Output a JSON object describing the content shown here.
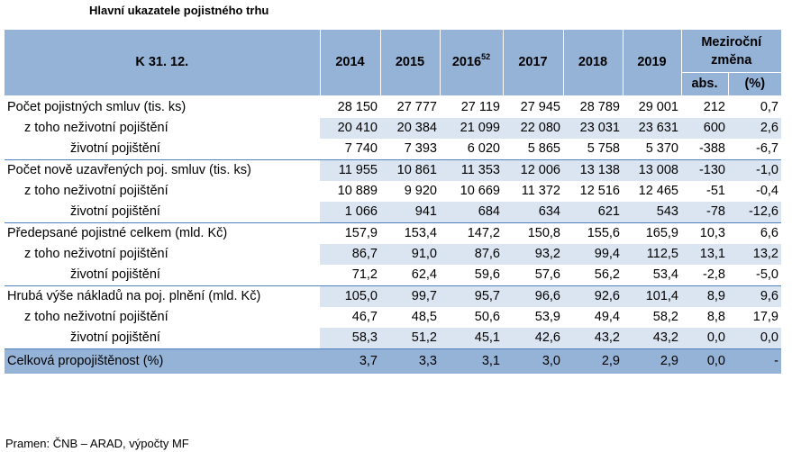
{
  "title": "Hlavní ukazatele pojistného trhu",
  "header": {
    "first_col": "K 31. 12.",
    "years": [
      "2014",
      "2015",
      "2016",
      "2017",
      "2018",
      "2019"
    ],
    "footnote_2016": "52",
    "change_label": "Meziroční změna",
    "abs_label": "abs.",
    "pct_label": "(%)"
  },
  "rows": [
    {
      "label": "Počet pojistných smluv (tis. ks)",
      "values": [
        "28 150",
        "27 777",
        "27 119",
        "27 945",
        "28 789",
        "29 001",
        "212",
        "0,7"
      ]
    },
    {
      "label": "z toho neživotní pojištění",
      "values": [
        "20 410",
        "20 384",
        "21 099",
        "22 080",
        "23 031",
        "23 631",
        "600",
        "2,6"
      ]
    },
    {
      "label": "životní pojištění",
      "values": [
        "7 740",
        "7 393",
        "6 020",
        "5 865",
        "5 758",
        "5 370",
        "-388",
        "-6,7"
      ]
    },
    {
      "label": "Počet nově uzavřených poj. smluv (tis. ks)",
      "values": [
        "11 955",
        "10 861",
        "11 353",
        "12 006",
        "13 138",
        "13 008",
        "-130",
        "-1,0"
      ]
    },
    {
      "label": "z toho neživotní pojištění",
      "values": [
        "10 889",
        "9 920",
        "10 669",
        "11 372",
        "12 516",
        "12 465",
        "-51",
        "-0,4"
      ]
    },
    {
      "label": "životní pojištění",
      "values": [
        "1 066",
        "941",
        "684",
        "634",
        "621",
        "543",
        "-78",
        "-12,6"
      ]
    },
    {
      "label": "Předepsané pojistné celkem (mld. Kč)",
      "values": [
        "157,9",
        "153,4",
        "147,2",
        "150,8",
        "155,6",
        "165,9",
        "10,3",
        "6,6"
      ]
    },
    {
      "label": "z toho neživotní pojištění",
      "values": [
        "86,7",
        "91,0",
        "87,6",
        "93,2",
        "99,4",
        "112,5",
        "13,1",
        "13,2"
      ]
    },
    {
      "label": "životní pojištění",
      "values": [
        "71,2",
        "62,4",
        "59,6",
        "57,6",
        "56,2",
        "53,4",
        "-2,8",
        "-5,0"
      ]
    },
    {
      "label": "Hrubá výše nákladů na poj. plnění (mld. Kč)",
      "values": [
        "105,0",
        "99,7",
        "95,7",
        "96,6",
        "92,6",
        "101,4",
        "8,9",
        "9,6"
      ]
    },
    {
      "label": "z toho neživotní pojištění",
      "values": [
        "46,7",
        "48,5",
        "50,6",
        "53,9",
        "49,4",
        "58,2",
        "8,8",
        "17,9"
      ]
    },
    {
      "label": "životní pojištění",
      "values": [
        "58,3",
        "51,2",
        "45,1",
        "42,6",
        "43,2",
        "43,2",
        "0,0",
        "0,0"
      ]
    }
  ],
  "footer_row": {
    "label": "Celková propojištěnost (%)",
    "values": [
      "3,7",
      "3,3",
      "3,1",
      "3,0",
      "2,9",
      "2,9",
      "0,0",
      "-"
    ]
  },
  "source": "Pramen: ČNB – ARAD, výpočty MF",
  "colors": {
    "header_bg": "#95b3d7",
    "shade_bg": "#dbe5f1",
    "rule": "#4f81bd"
  }
}
